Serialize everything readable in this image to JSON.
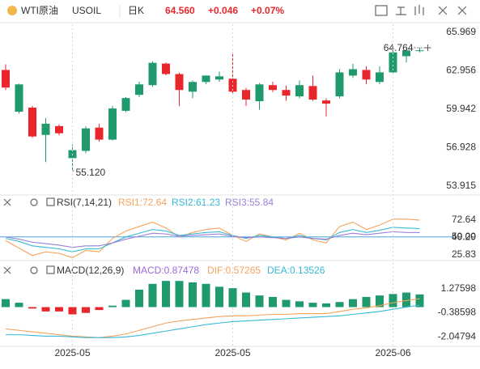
{
  "header": {
    "name": "WTI原油",
    "symbol": "USOIL",
    "period": "日K",
    "last": "64.560",
    "change": "+0.046",
    "change_pct": "+0.07%"
  },
  "chart_data": [
    {
      "type": "candlestick",
      "up_color": "#1f9a6c",
      "down_color": "#e8262c",
      "open": [
        63.02,
        59.75,
        60.07,
        57.93,
        58.62,
        56.11,
        56.68,
        58.5,
        57.56,
        59.82,
        61.07,
        61.83,
        63.52,
        62.7,
        61.32,
        62.08,
        62.27,
        62.33,
        61.45,
        60.57,
        61.83,
        61.45,
        60.95,
        61.76,
        60.63,
        60.95,
        62.58,
        63.02,
        62.08,
        62.83,
        64.1,
        64.514
      ],
      "high": [
        63.46,
        61.95,
        60.2,
        59.25,
        58.75,
        57.18,
        58.6,
        58.8,
        60.2,
        60.9,
        62.1,
        63.7,
        63.6,
        62.8,
        62.2,
        62.6,
        62.9,
        64.4,
        61.6,
        62.0,
        62.1,
        61.8,
        62.2,
        62.6,
        60.8,
        63.1,
        63.5,
        63.3,
        63.3,
        64.5,
        64.7,
        64.764
      ],
      "low": [
        61.45,
        59.6,
        57.7,
        55.8,
        57.9,
        55.12,
        56.5,
        57.4,
        57.5,
        59.7,
        60.9,
        61.7,
        62.6,
        60.19,
        60.8,
        61.9,
        62.1,
        61.2,
        60.19,
        59.9,
        61.3,
        60.6,
        60.8,
        60.6,
        59.38,
        60.8,
        62.4,
        61.9,
        61.9,
        62.7,
        63.6,
        64.4
      ],
      "close": [
        61.64,
        61.89,
        57.81,
        58.81,
        58.06,
        56.74,
        58.44,
        57.56,
        60.0,
        60.82,
        61.89,
        63.58,
        62.7,
        61.45,
        62.08,
        62.58,
        62.52,
        61.32,
        60.7,
        61.89,
        61.45,
        61.01,
        61.83,
        60.7,
        60.38,
        62.83,
        63.08,
        62.27,
        62.83,
        64.4,
        64.55,
        64.56
      ],
      "ylim": [
        53.41,
        66.6
      ],
      "yticks": [
        65.969,
        62.956,
        59.942,
        56.928,
        53.915
      ],
      "annotations": [
        {
          "value": 64.764,
          "label": "64.764"
        },
        {
          "value": 55.12,
          "label": "55.120"
        }
      ]
    },
    {
      "type": "line",
      "title": "RSI(7,14,21)",
      "ylim": [
        20.4,
        87.9
      ],
      "yticks": [
        72.64,
        {
          "value": 50,
          "label": "50.00"
        },
        {
          "value": 49.29,
          "label": "49.29"
        },
        25.83
      ],
      "series": [
        {
          "name": "RSI1:72.64",
          "color": "#f5a35c",
          "values": [
            45,
            35,
            25,
            30,
            28,
            22,
            32,
            30,
            48,
            58,
            64,
            70,
            62,
            50,
            56,
            60,
            62,
            52,
            44,
            54,
            50,
            46,
            55,
            46,
            42,
            64,
            70,
            60,
            66,
            74,
            74,
            72.64
          ]
        },
        {
          "name": "RSI2:61.23",
          "color": "#36b9d6",
          "values": [
            48,
            44,
            38,
            36,
            34,
            30,
            34,
            34,
            42,
            50,
            55,
            60,
            58,
            52,
            54,
            56,
            57,
            52,
            48,
            52,
            50,
            48,
            52,
            48,
            46,
            56,
            60,
            56,
            59,
            63,
            62,
            61.23
          ]
        },
        {
          "name": "RSI3:55.84",
          "color": "#9a7fd6",
          "values": [
            50,
            47,
            43,
            41,
            39,
            36,
            38,
            38,
            42,
            47,
            51,
            55,
            54,
            51,
            52,
            53,
            54,
            51,
            49,
            50,
            49,
            48,
            50,
            48,
            47,
            52,
            55,
            53,
            55,
            57,
            56,
            55.84
          ]
        }
      ]
    },
    {
      "type": "macd",
      "title": "MACD(12,26,9)",
      "ylim": [
        -2.7,
        2.2
      ],
      "yticks": [
        1.27598,
        -0.38598,
        -2.04794
      ],
      "categories": [
        null,
        null,
        null,
        null,
        null,
        "2025-05",
        null,
        null,
        null,
        null,
        null,
        null,
        null,
        null,
        null,
        null,
        null,
        "2025-05",
        null,
        null,
        null,
        null,
        null,
        null,
        null,
        null,
        null,
        null,
        null,
        "2025-06",
        null,
        null
      ],
      "histogram": {
        "name": "MACD:0.87478",
        "color": "#9b6ad6",
        "up_color": "#1f9a6c",
        "down_color": "#e8262c",
        "values": [
          0.55,
          0.3,
          -0.1,
          -0.3,
          -0.3,
          -0.5,
          -0.4,
          -0.2,
          0.1,
          0.5,
          1.2,
          1.6,
          1.8,
          1.8,
          1.7,
          1.6,
          1.4,
          1.3,
          1.0,
          0.8,
          0.7,
          0.5,
          0.4,
          0.3,
          0.25,
          0.35,
          0.55,
          0.7,
          0.8,
          0.9,
          1.0,
          0.87478
        ]
      },
      "series": [
        {
          "name": "DIF:0.57265",
          "color": "#f5a35c",
          "values": [
            -1.5,
            -1.6,
            -1.7,
            -1.8,
            -1.9,
            -2.0,
            -2.05,
            -2.1,
            -2.0,
            -1.85,
            -1.6,
            -1.35,
            -1.1,
            -0.95,
            -0.85,
            -0.75,
            -0.65,
            -0.6,
            -0.6,
            -0.55,
            -0.5,
            -0.5,
            -0.45,
            -0.45,
            -0.45,
            -0.3,
            -0.15,
            -0.05,
            0.1,
            0.3,
            0.45,
            0.57265
          ]
        },
        {
          "name": "DEA:0.13526",
          "color": "#36b9d6",
          "values": [
            -1.9,
            -1.9,
            -1.95,
            -2.0,
            -2.0,
            -2.05,
            -2.1,
            -2.1,
            -2.1,
            -2.05,
            -1.95,
            -1.8,
            -1.65,
            -1.5,
            -1.35,
            -1.2,
            -1.1,
            -1.0,
            -0.95,
            -0.9,
            -0.85,
            -0.8,
            -0.75,
            -0.7,
            -0.65,
            -0.6,
            -0.5,
            -0.4,
            -0.3,
            -0.15,
            0.0,
            0.13526
          ]
        }
      ]
    }
  ]
}
